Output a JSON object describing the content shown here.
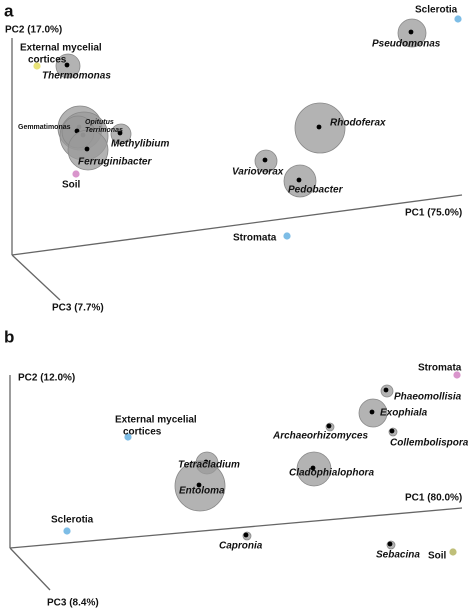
{
  "panels": [
    {
      "label": "a",
      "axes": {
        "pc2": "PC2 (17.0%)",
        "pc1": "PC1 (75.0%)",
        "pc3": "PC3 (7.7%)"
      },
      "nodes": [
        {
          "label": "Sclerotia"
        },
        {
          "label": "Pseudomonas"
        },
        {
          "label_lines": [
            "External mycelial",
            "cortices"
          ]
        },
        {
          "label": "Thermomonas"
        },
        {
          "label": "Gemmatimonas"
        },
        {
          "label": "Opitutus"
        },
        {
          "label": "Terrimonas"
        },
        {
          "label": "Methylibium"
        },
        {
          "label": "Ferruginibacter"
        },
        {
          "label": "Soil"
        },
        {
          "label": "Rhodoferax"
        },
        {
          "label": "Variovorax"
        },
        {
          "label": "Pedobacter"
        },
        {
          "label": "Stromata"
        }
      ]
    },
    {
      "label": "b",
      "axes": {
        "pc2": "PC2 (12.0%)",
        "pc1": "PC1 (80.0%)",
        "pc3": "PC3 (8.4%)"
      },
      "nodes": [
        {
          "label": "Stromata"
        },
        {
          "label": "Phaeomollisia"
        },
        {
          "label": "Exophiala"
        },
        {
          "label": "Archaeorhizomyces"
        },
        {
          "label": "Collembolispora"
        },
        {
          "label_lines": [
            "External mycelial",
            "cortices"
          ]
        },
        {
          "label": "Tetracladium"
        },
        {
          "label": "Cladophialophora"
        },
        {
          "label": "Entoloma"
        },
        {
          "label": "Sclerotia"
        },
        {
          "label": "Capronia"
        },
        {
          "label": "Sebacina"
        },
        {
          "label": "Soil"
        }
      ]
    }
  ]
}
